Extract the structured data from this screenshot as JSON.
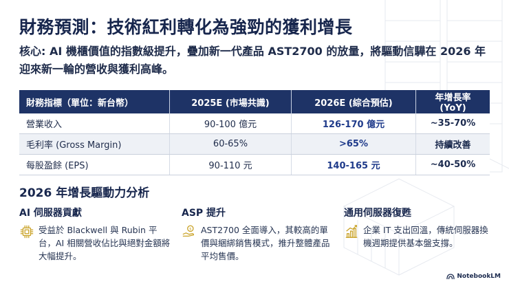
{
  "title": "財務預測：技術紅利轉化為強勁的獲利增長",
  "subtitle": {
    "lead": "核心: ",
    "text": "AI 機櫃價值的指數級提升，疊加新一代產品 AST2700 的放量，將驅動信驊在 2026 年迎來新一輪的營收與獲利高峰。"
  },
  "table": {
    "headers": [
      "財務指標（單位：新台幣）",
      "2025E (市場共識)",
      "2026E (綜合預估)",
      "年增長率 (YoY)"
    ],
    "rows": [
      [
        "營業收入",
        "90-100 億元",
        "126-170 億元",
        "~35-70%"
      ],
      [
        "毛利率 (Gross Margin)",
        "60-65%",
        ">65%",
        "持續改善"
      ],
      [
        "每股盈餘 (EPS)",
        "90-110 元",
        "140-165 元",
        "~40-50%"
      ]
    ]
  },
  "drivers": {
    "title": "2026 年增長驅動力分析",
    "items": [
      {
        "heading": "AI 伺服器貢獻",
        "icon": "chip-icon",
        "text": "受益於 Blackwell 與 Rubin 平台，AI 相關營收佔比與絕對金額將大幅提升。"
      },
      {
        "heading": "ASP 提升",
        "icon": "coin-hand-icon",
        "text": "AST2700 全面導入，其較高的單價與綑綁銷售模式，推升整體產品平均售價。"
      },
      {
        "heading": "通用伺服器復甦",
        "icon": "growth-chart-icon",
        "text": "企業 IT 支出回溫，傳統伺服器換機週期提供基本盤支撐。"
      }
    ]
  },
  "brand": "NotebookLM",
  "colors": {
    "navy": "#1e3366",
    "accent_blue": "#1e3a8a",
    "icon_gold": "#c9a227"
  }
}
